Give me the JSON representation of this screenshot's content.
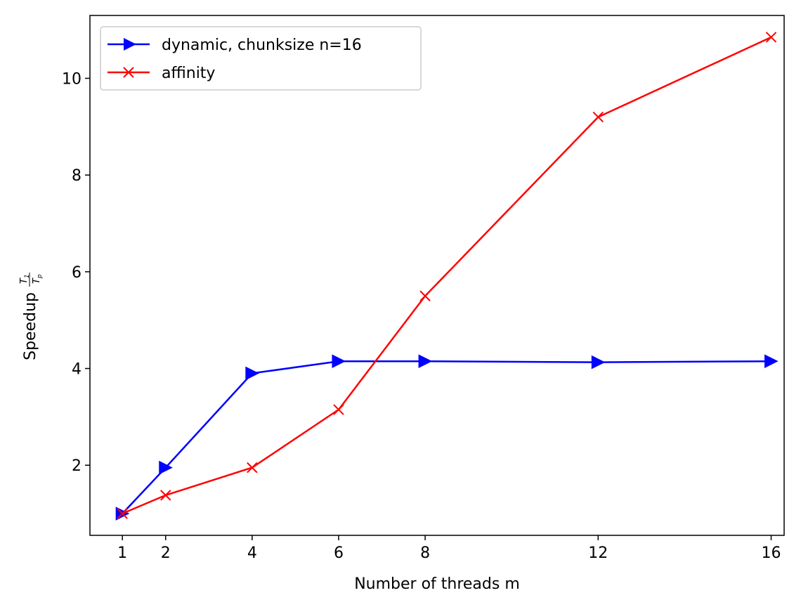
{
  "chart_data": {
    "type": "line",
    "title": "",
    "xlabel": "Number of threads m",
    "ylabel_prefix": "Speedup",
    "ylabel_fraction": {
      "numerator": "T1",
      "numerator_base": "T",
      "numerator_sub": "1",
      "denominator_base": "T",
      "denominator_sub": "p"
    },
    "x": [
      1,
      2,
      4,
      6,
      8,
      12,
      16
    ],
    "xticks": [
      1,
      2,
      4,
      6,
      8,
      12,
      16
    ],
    "yticks": [
      2,
      4,
      6,
      8,
      10
    ],
    "xlim": [
      0.25,
      16.3
    ],
    "ylim": [
      0.55,
      11.3
    ],
    "legend_position": "upper-left",
    "series": [
      {
        "name": "dynamic, chunksize n=16",
        "color": "#0000ff",
        "marker": "triangle-right",
        "values": [
          1.0,
          1.95,
          3.9,
          4.15,
          4.15,
          4.13,
          4.15
        ]
      },
      {
        "name": "affinity",
        "color": "#ff0000",
        "marker": "x",
        "values": [
          1.0,
          1.38,
          1.95,
          3.15,
          5.5,
          9.2,
          10.85
        ]
      }
    ]
  }
}
